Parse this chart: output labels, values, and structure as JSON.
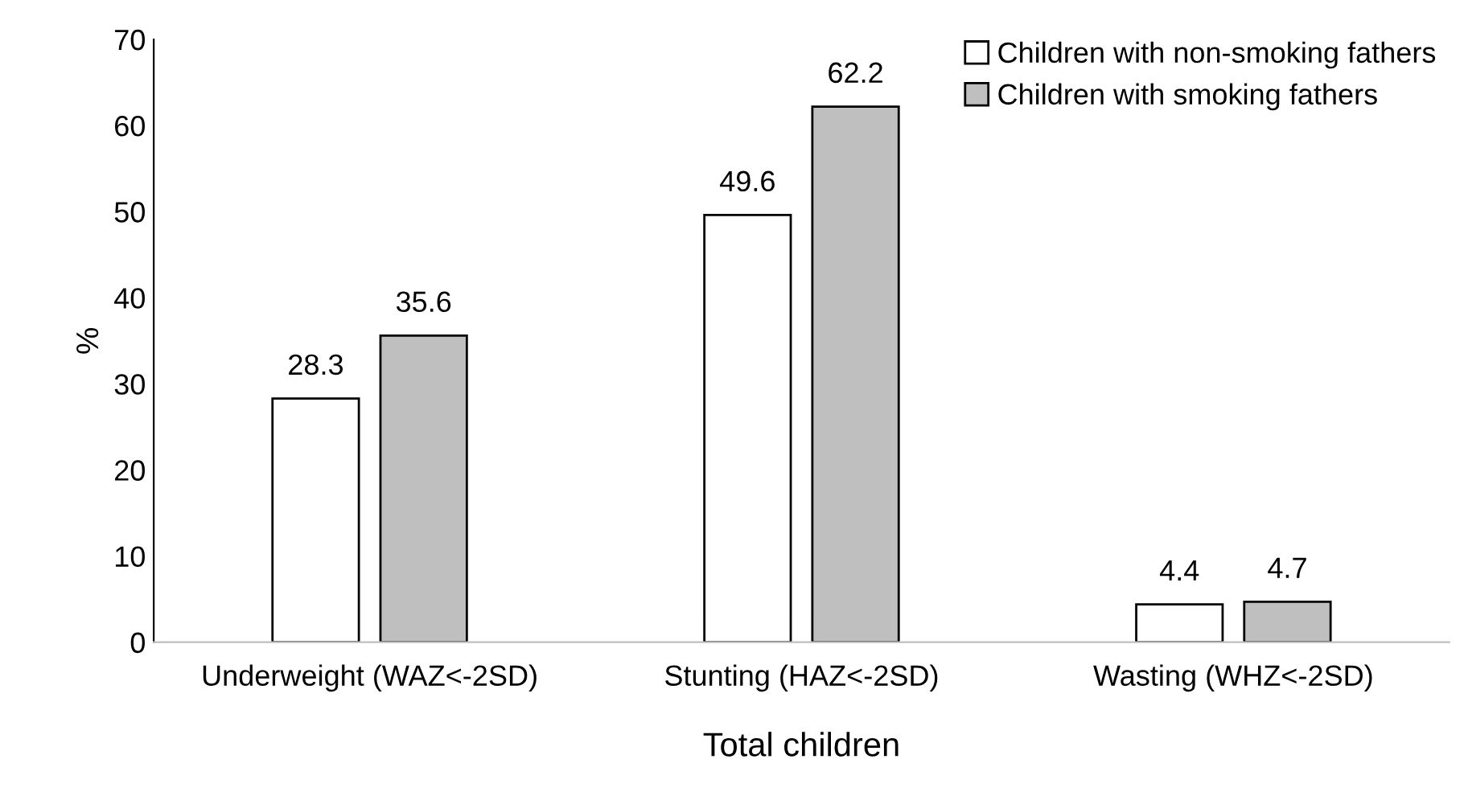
{
  "chart_data": {
    "type": "bar",
    "categories": [
      "Underweight (WAZ<-2SD)",
      "Stunting (HAZ<-2SD)",
      "Wasting (WHZ<-2SD)"
    ],
    "series": [
      {
        "name": "Children with non-smoking fathers",
        "color": "#ffffff",
        "values": [
          28.3,
          49.6,
          4.4
        ]
      },
      {
        "name": "Children with smoking fathers",
        "color": "#bfbfbf",
        "values": [
          35.6,
          62.2,
          4.7
        ]
      }
    ],
    "xlabel": "Total children",
    "ylabel": "%",
    "ylim": [
      0,
      70
    ],
    "yticks": [
      0,
      10,
      20,
      30,
      40,
      50,
      60,
      70
    ],
    "data_labels": true,
    "legend": "top right",
    "grid": false
  }
}
